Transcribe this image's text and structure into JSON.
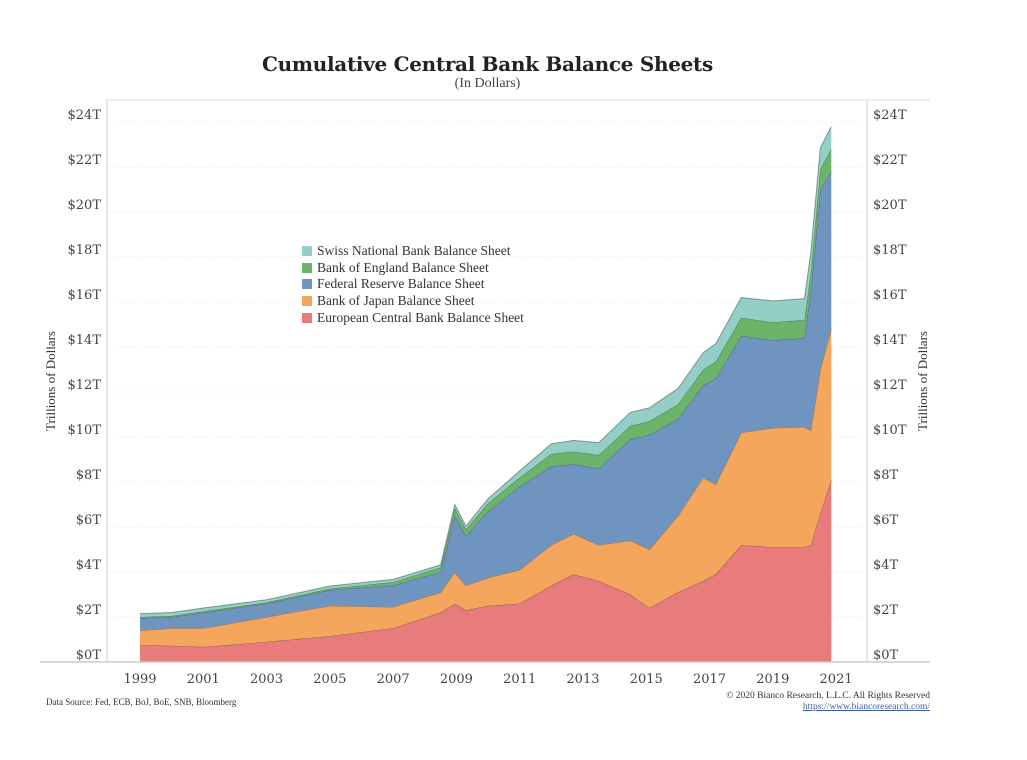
{
  "chart_data": {
    "type": "area",
    "stacked": true,
    "title": "Cumulative Central Bank Balance Sheets",
    "subtitle": "(In Dollars)",
    "ylabel": "Trillions of Dollars",
    "ylabel_right": "Trillions of Dollars",
    "xlabel": "",
    "ylim": [
      0,
      24
    ],
    "xlim": [
      1998.6,
      2021.4
    ],
    "grid": true,
    "legend_position": "center-left",
    "y_ticks": [
      "$0T",
      "$2T",
      "$4T",
      "$6T",
      "$8T",
      "$10T",
      "$12T",
      "$14T",
      "$16T",
      "$18T",
      "$20T",
      "$22T",
      "$24T"
    ],
    "y_tick_values": [
      0,
      2,
      4,
      6,
      8,
      10,
      12,
      14,
      16,
      18,
      20,
      22,
      24
    ],
    "x_ticks": [
      "1999",
      "2001",
      "2003",
      "2005",
      "2007",
      "2009",
      "2011",
      "2013",
      "2015",
      "2017",
      "2019",
      "2021"
    ],
    "x": [
      1999,
      2000,
      2001,
      2003,
      2005,
      2007,
      2008.5,
      2008.95,
      2009.3,
      2010,
      2011,
      2012,
      2012.7,
      2013.5,
      2014.5,
      2015.1,
      2016,
      2016.8,
      2017.2,
      2018,
      2019,
      2020,
      2020.2,
      2020.5,
      2020.85
    ],
    "series": [
      {
        "name": "European Central Bank Balance Sheet",
        "color": "#e87b7b",
        "values": [
          0.75,
          0.72,
          0.67,
          0.9,
          1.15,
          1.5,
          2.2,
          2.6,
          2.3,
          2.5,
          2.6,
          3.4,
          3.9,
          3.6,
          3.0,
          2.4,
          3.1,
          3.6,
          3.9,
          5.2,
          5.1,
          5.1,
          5.2,
          6.6,
          8.1
        ]
      },
      {
        "name": "Bank of Japan Balance Sheet",
        "color": "#f3a65c",
        "values": [
          0.65,
          0.78,
          0.83,
          1.1,
          1.35,
          0.95,
          0.9,
          1.4,
          1.1,
          1.25,
          1.5,
          1.8,
          1.8,
          1.6,
          2.4,
          2.6,
          3.4,
          4.6,
          4.0,
          5.0,
          5.3,
          5.35,
          5.1,
          6.4,
          6.7
        ]
      },
      {
        "name": "Federal Reserve Balance Sheet",
        "color": "#7094c0",
        "values": [
          0.55,
          0.5,
          0.7,
          0.6,
          0.7,
          0.95,
          0.9,
          2.5,
          2.2,
          2.95,
          3.7,
          3.5,
          3.1,
          3.4,
          4.5,
          5.1,
          4.3,
          4.1,
          4.7,
          4.3,
          3.9,
          3.95,
          6.2,
          8.0,
          7.0
        ]
      },
      {
        "name": "Bank of England Balance Sheet",
        "color": "#6db46b",
        "values": [
          0.05,
          0.05,
          0.05,
          0.05,
          0.06,
          0.15,
          0.2,
          0.35,
          0.3,
          0.35,
          0.4,
          0.55,
          0.55,
          0.6,
          0.6,
          0.6,
          0.65,
          0.7,
          0.75,
          0.8,
          0.8,
          0.8,
          0.8,
          0.9,
          1.0
        ]
      },
      {
        "name": "Swiss National Bank Balance Sheet",
        "color": "#93cfc6",
        "values": [
          0.15,
          0.15,
          0.15,
          0.12,
          0.12,
          0.12,
          0.12,
          0.15,
          0.15,
          0.2,
          0.3,
          0.45,
          0.5,
          0.55,
          0.6,
          0.6,
          0.7,
          0.75,
          0.8,
          0.9,
          0.95,
          0.95,
          0.9,
          0.95,
          1.0
        ]
      }
    ],
    "legend_order": [
      4,
      3,
      2,
      1,
      0
    ]
  },
  "footer": {
    "source": "Data Source: Fed, ECB, BoJ, BoE, SNB, Bloomberg",
    "copyright": "© 2020 Bianco Research, L.L.C. All Rights Reserved",
    "url": "https://www.biancoresearch.com/"
  }
}
